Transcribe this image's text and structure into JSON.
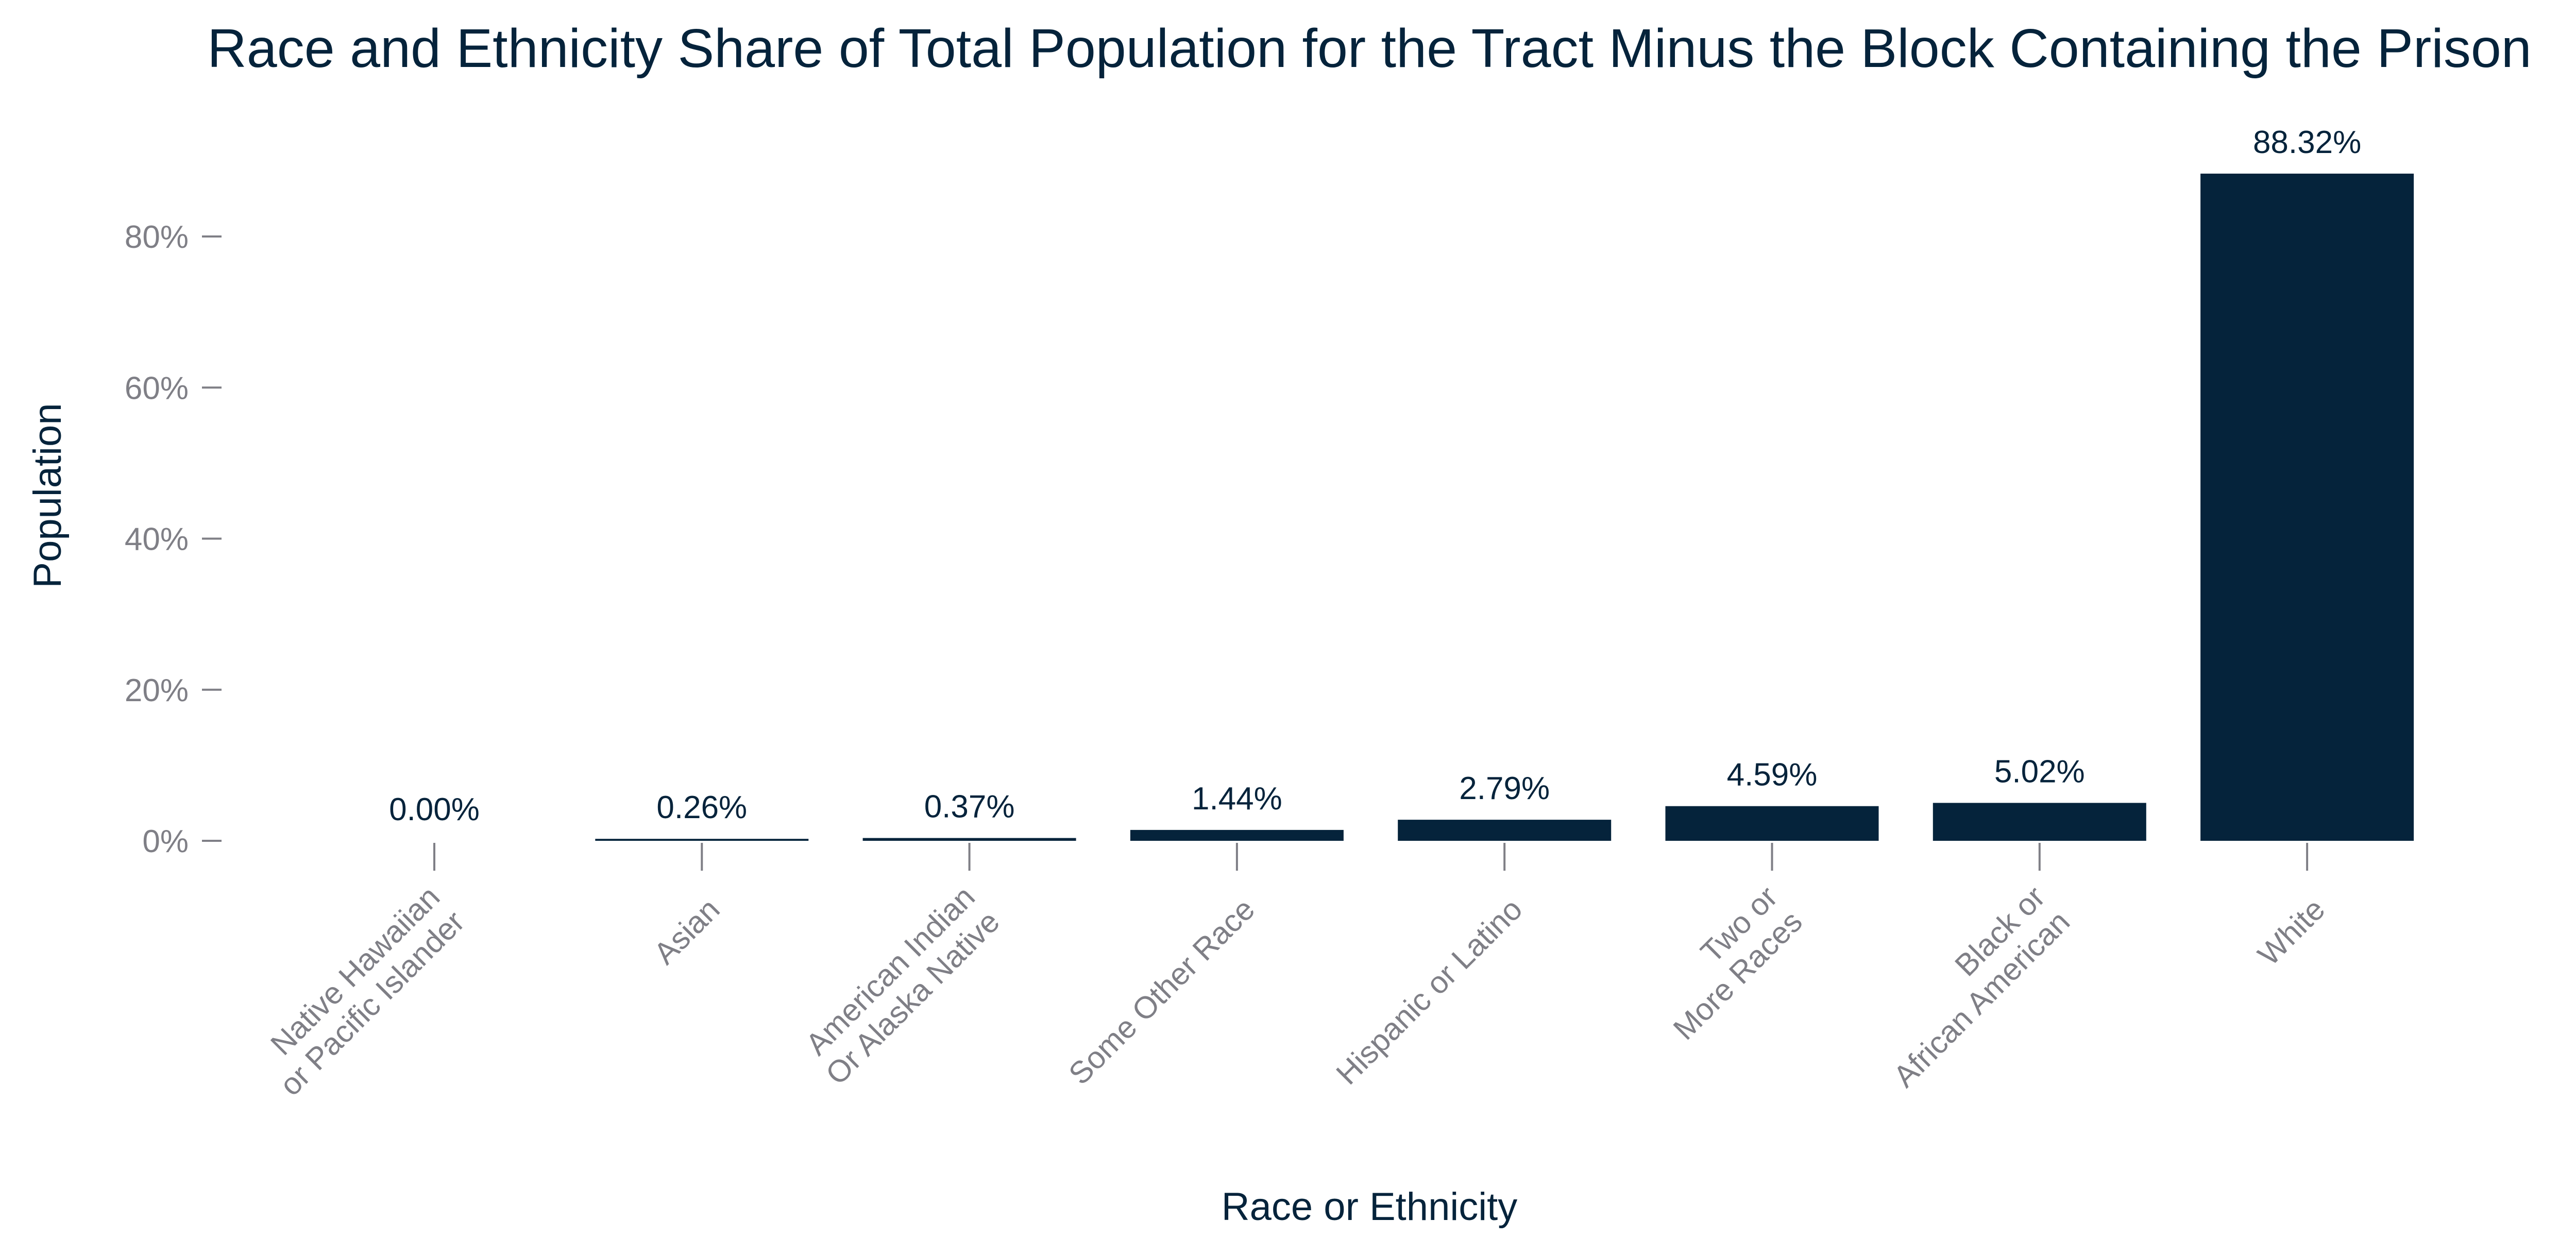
{
  "chart_data": {
    "type": "bar",
    "title": "Race and Ethnicity Share of Total Population for the Tract Minus the Block Containing the Prison",
    "xlabel": "Race or Ethnicity",
    "ylabel": "Population",
    "categories": [
      [
        "Native Hawaiian",
        "or Pacific Islander"
      ],
      [
        "Asian"
      ],
      [
        "American Indian",
        "Or Alaska Native"
      ],
      [
        "Some Other Race"
      ],
      [
        "Hispanic or Latino"
      ],
      [
        "Two or",
        "More Races"
      ],
      [
        "Black or",
        "African American"
      ],
      [
        "White"
      ]
    ],
    "values": [
      0.0,
      0.26,
      0.37,
      1.44,
      2.79,
      4.59,
      5.02,
      88.32
    ],
    "data_labels": [
      "0.00%",
      "0.26%",
      "0.37%",
      "1.44%",
      "2.79%",
      "4.59%",
      "5.02%",
      "88.32%"
    ],
    "yticks": [
      0,
      20,
      40,
      60,
      80
    ],
    "ytick_labels": [
      "0%",
      "20%",
      "40%",
      "60%",
      "80%"
    ],
    "ylim": [
      0,
      90
    ],
    "grid": false,
    "colors": {
      "bar": "#05233b",
      "text": "#05233b",
      "tick": "#7f7f86"
    }
  }
}
